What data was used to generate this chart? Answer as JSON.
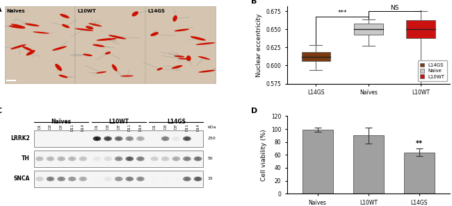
{
  "panel_B": {
    "ylabel": "Nuclear eccentricity",
    "categories": [
      "L14GS",
      "Naïves",
      "L10WT"
    ],
    "box_colors": [
      "#7B3A10",
      "#c8c8c8",
      "#cc1111"
    ],
    "medians": [
      0.612,
      0.65,
      0.65
    ],
    "q1": [
      0.606,
      0.643,
      0.638
    ],
    "q3": [
      0.619,
      0.658,
      0.663
    ],
    "whisker_low": [
      0.594,
      0.627,
      0.575
    ],
    "whisker_high": [
      0.628,
      0.664,
      0.675
    ],
    "ylim": [
      0.575,
      0.682
    ],
    "yticks": [
      0.575,
      0.6,
      0.625,
      0.65,
      0.675
    ],
    "sig_L14GS_Naive": "***",
    "sig_Naive_L10WT": "NS"
  },
  "panel_D": {
    "ylabel": "Cell viability (%)",
    "categories": [
      "Naïves",
      "L10WT",
      "L14GS"
    ],
    "values": [
      99,
      90,
      64
    ],
    "errors": [
      3,
      12,
      6
    ],
    "bar_color": "#a0a0a0",
    "ylim": [
      0,
      120
    ],
    "yticks": [
      0,
      20,
      40,
      60,
      80,
      100,
      120
    ],
    "significance": "**"
  },
  "bg_color": "#ffffff"
}
